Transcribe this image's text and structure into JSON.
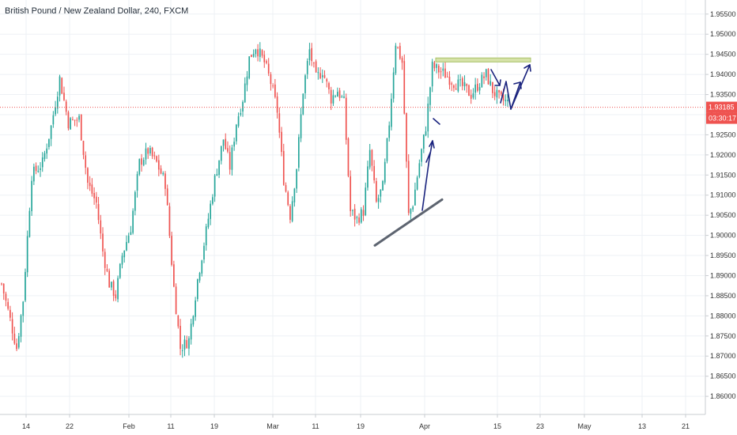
{
  "chart_title": "British Pound / New Zealand Dollar, 240, FXCM",
  "chart_data": {
    "type": "candlestick",
    "title": "British Pound / New Zealand Dollar, 240, FXCM",
    "grid": true,
    "ylim": [
      1.8555,
      1.9585
    ],
    "y_ticks": [
      "1.95500",
      "1.95000",
      "1.94500",
      "1.94000",
      "1.93500",
      "1.93000",
      "1.92500",
      "1.92000",
      "1.91500",
      "1.91000",
      "1.90500",
      "1.90000",
      "1.89500",
      "1.89000",
      "1.88500",
      "1.88000",
      "1.87500",
      "1.87000",
      "1.86500",
      "1.86000"
    ],
    "x_ticks": [
      "14",
      "22",
      "Feb",
      "11",
      "19",
      "Mar",
      "11",
      "19",
      "Apr",
      "15",
      "23",
      "May",
      "13",
      "21"
    ],
    "current_price": "1.93185",
    "countdown": "03:30:17",
    "colors": {
      "up": "#26a69a",
      "down": "#ef5350",
      "price_line": "#ef5350",
      "drawing_dark": "#5d6470",
      "arrow": "#1a237e",
      "zone_fill": "#d6e2a8",
      "zone_stroke": "#a9c36a"
    },
    "trend_line": {
      "from": [
        "Mar 19",
        1.8975
      ],
      "to": [
        "Apr 1",
        1.9089
      ]
    },
    "resistance_zone": {
      "start": "Apr 2",
      "end": "Apr 20",
      "low": 1.9431,
      "high": 1.9441
    },
    "series": [
      {
        "name": "price_path",
        "anchors": [
          [
            0,
            1.888
          ],
          [
            4,
            1.879
          ],
          [
            7,
            1.872
          ],
          [
            10,
            1.884
          ],
          [
            14,
            1.915
          ],
          [
            19,
            1.918
          ],
          [
            23,
            1.927
          ],
          [
            27,
            1.939
          ],
          [
            31,
            1.928
          ],
          [
            36,
            1.929
          ],
          [
            40,
            1.913
          ],
          [
            44,
            1.908
          ],
          [
            47,
            1.896
          ],
          [
            50,
            1.888
          ],
          [
            53,
            1.885
          ],
          [
            56,
            1.895
          ],
          [
            60,
            1.902
          ],
          [
            64,
            1.918
          ],
          [
            68,
            1.921
          ],
          [
            72,
            1.918
          ],
          [
            76,
            1.913
          ],
          [
            80,
            1.887
          ],
          [
            83,
            1.872
          ],
          [
            87,
            1.874
          ],
          [
            91,
            1.889
          ],
          [
            95,
            1.901
          ],
          [
            99,
            1.914
          ],
          [
            103,
            1.924
          ],
          [
            106,
            1.917
          ],
          [
            109,
            1.928
          ],
          [
            112,
            1.934
          ],
          [
            115,
            1.944
          ],
          [
            118,
            1.947
          ],
          [
            122,
            1.943
          ],
          [
            125,
            1.938
          ],
          [
            128,
            1.931
          ],
          [
            131,
            1.914
          ],
          [
            134,
            1.905
          ],
          [
            137,
            1.917
          ],
          [
            140,
            1.936
          ],
          [
            143,
            1.946
          ],
          [
            146,
            1.939
          ],
          [
            149,
            1.941
          ],
          [
            153,
            1.934
          ],
          [
            156,
            1.936
          ],
          [
            159,
            1.933
          ],
          [
            162,
            1.906
          ],
          [
            165,
            1.904
          ],
          [
            168,
            1.906
          ],
          [
            171,
            1.921
          ],
          [
            174,
            1.908
          ],
          [
            177,
            1.912
          ],
          [
            180,
            1.928
          ],
          [
            183,
            1.948
          ],
          [
            186,
            1.943
          ],
          [
            189,
            1.905
          ],
          [
            191,
            1.908
          ],
          [
            194,
            1.918
          ],
          [
            197,
            1.927
          ],
          [
            200,
            1.942
          ],
          [
            203,
            1.941
          ],
          [
            206,
            1.94
          ],
          [
            210,
            1.938
          ],
          [
            214,
            1.937
          ],
          [
            218,
            1.935
          ],
          [
            222,
            1.938
          ],
          [
            225,
            1.94
          ],
          [
            228,
            1.936
          ],
          [
            231,
            1.934
          ],
          [
            235,
            1.933
          ]
        ]
      }
    ]
  }
}
